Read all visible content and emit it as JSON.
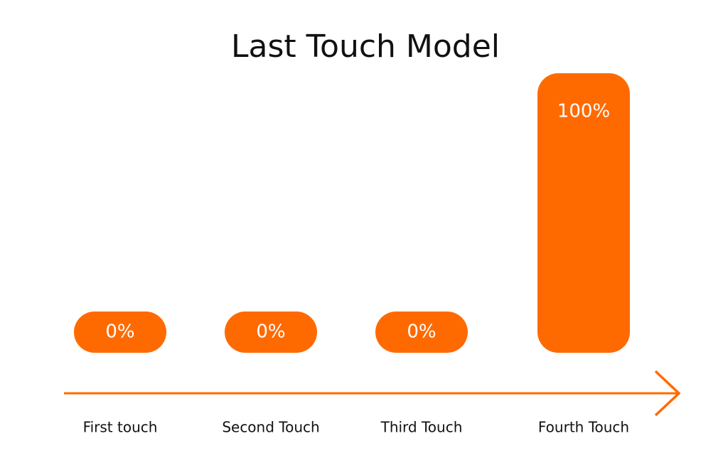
{
  "chart_data": {
    "type": "bar",
    "title": "Last Touch Model",
    "categories": [
      "First touch",
      "Second Touch",
      "Third Touch",
      "Fourth Touch"
    ],
    "values": [
      0,
      0,
      0,
      100
    ],
    "value_labels": [
      "0%",
      "0%",
      "0%",
      "100%"
    ],
    "color": "#ff6a00"
  }
}
